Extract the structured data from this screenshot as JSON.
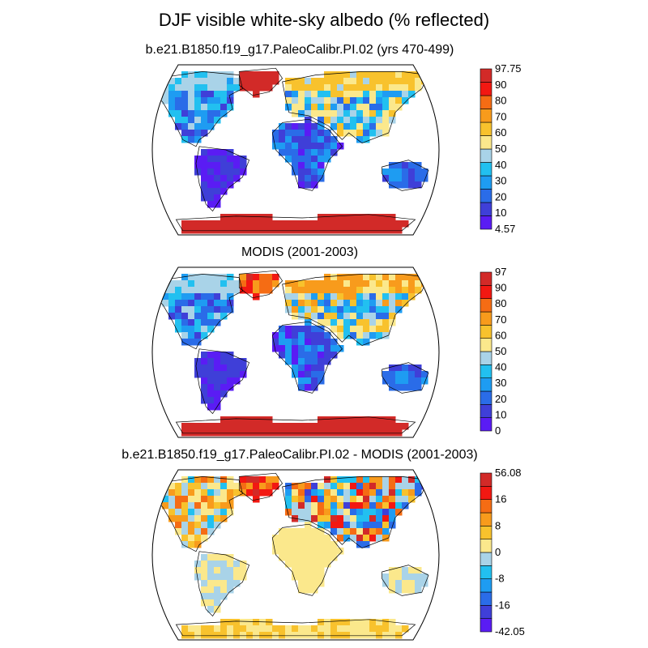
{
  "figure": {
    "title": "DJF visible white-sky albedo (% reflected)"
  },
  "chart_data": [
    {
      "type": "heatmap",
      "subtitle": "b.e21.B1850.f19_g17.PaleoCalibr.PI.02 (yrs 470-499)",
      "projection": "Robinson (world map)",
      "colorbar": {
        "labels": [
          "97.75",
          "90",
          "80",
          "70",
          "60",
          "50",
          "40",
          "30",
          "20",
          "10",
          "4.57"
        ],
        "min": 4.57,
        "max": 97.75,
        "orientation": "vertical, right of map"
      },
      "colors": [
        "#5a1cf4",
        "#3f3fd8",
        "#2a6ce8",
        "#1e9cf2",
        "#22c0f0",
        "#a9d3e8",
        "#fbe88c",
        "#f8c22d",
        "#f89b1c",
        "#f56c14",
        "#f21812",
        "#d22a28"
      ],
      "fields": {
        "antarctica": "90-97.75",
        "greenland": "90-97.75",
        "arctic_north_america_siberia": "70-97.75",
        "north_america_midlatitude": "20-60",
        "south_america": "4.57-20",
        "africa": "4.57-30",
        "eurasia_midlatitude": "20-60",
        "australia": "10-30"
      }
    },
    {
      "type": "heatmap",
      "subtitle": "MODIS (2001-2003)",
      "projection": "Robinson (world map)",
      "colorbar": {
        "labels": [
          "97",
          "90",
          "80",
          "70",
          "60",
          "50",
          "40",
          "30",
          "20",
          "10",
          "0"
        ],
        "min": 0,
        "max": 97,
        "orientation": "vertical, right of map"
      },
      "colors": [
        "#5a1cf4",
        "#3f3fd8",
        "#2a6ce8",
        "#1e9cf2",
        "#22c0f0",
        "#a9d3e8",
        "#fbe88c",
        "#f8c22d",
        "#f89b1c",
        "#f56c14",
        "#f21812",
        "#d22a28"
      ],
      "fields": {
        "antarctica": "90-97",
        "greenland": "80-97",
        "arctic_north_america_siberia": "50-90",
        "north_america_midlatitude": "10-50",
        "south_america": "0-20",
        "africa": "0-40",
        "eurasia_midlatitude": "20-80",
        "australia": "10-30"
      }
    },
    {
      "type": "heatmap",
      "subtitle": "b.e21.B1850.f19_g17.PaleoCalibr.PI.02 - MODIS (2001-2003)",
      "projection": "Robinson (world map)",
      "colorbar": {
        "labels": [
          "56.08",
          "16",
          "8",
          "0",
          "-8",
          "-16",
          "-42.05"
        ],
        "min": -42.05,
        "max": 56.08,
        "orientation": "vertical, right of map"
      },
      "colors": [
        "#5a1cf4",
        "#3f3fd8",
        "#2a6ce8",
        "#1e9cf2",
        "#22c0f0",
        "#a9d3e8",
        "#fbe88c",
        "#f8c22d",
        "#f89b1c",
        "#f56c14",
        "#f21812",
        "#d22a28"
      ],
      "fields": {
        "antarctica": "0-8",
        "greenland": "8-56",
        "arctic_north_america_siberia": "8-56",
        "north_america_midlatitude": "-8-16",
        "south_america": "-8-8",
        "africa": "0-8",
        "eurasia_midlatitude": "-42-56",
        "australia": "-8-8"
      }
    }
  ]
}
